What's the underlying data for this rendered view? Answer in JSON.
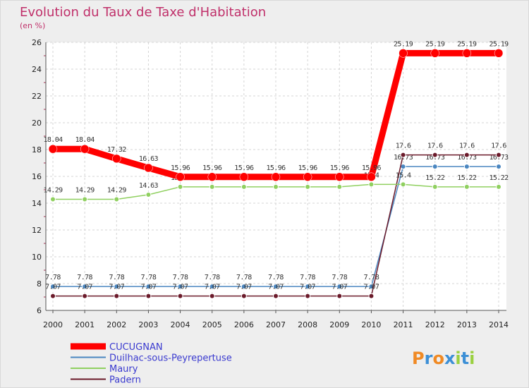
{
  "header": {
    "title": "Evolution du Taux de Taxe d'Habitation",
    "unit": "(en %)"
  },
  "logo": {
    "text": "Proxiti"
  },
  "chart_data": {
    "type": "line",
    "title": "Evolution du Taux de Taxe d'Habitation",
    "subtitle": "(en %)",
    "xlabel": "",
    "ylabel": "",
    "x": [
      2000,
      2001,
      2002,
      2003,
      2004,
      2005,
      2006,
      2007,
      2008,
      2009,
      2010,
      2011,
      2012,
      2013,
      2014
    ],
    "ylim": [
      6,
      26
    ],
    "yticks": [
      6,
      8,
      10,
      12,
      14,
      16,
      18,
      20,
      22,
      24,
      26
    ],
    "grid": true,
    "legend_position": "bottom-left",
    "series": [
      {
        "name": "CUCUGNAN",
        "color": "#ff0000",
        "values": [
          18.04,
          18.04,
          17.32,
          16.63,
          15.96,
          15.96,
          15.96,
          15.96,
          15.96,
          15.96,
          15.96,
          25.19,
          25.19,
          25.19,
          25.19
        ],
        "labels": [
          "18.04",
          "18.04",
          "17.32",
          "16.63",
          "15.96",
          "15.96",
          "15.96",
          "15.96",
          "15.96",
          "15.96",
          "15.96",
          "25.19",
          "25.19",
          "25.19",
          "25.19"
        ]
      },
      {
        "name": "Duilhac-sous-Peyrepertuse",
        "color": "#4a86c0",
        "values": [
          7.78,
          7.78,
          7.78,
          7.78,
          7.78,
          7.78,
          7.78,
          7.78,
          7.78,
          7.78,
          7.78,
          16.73,
          16.73,
          16.73,
          16.73
        ],
        "labels": [
          "7.78",
          "7.78",
          "7.78",
          "7.78",
          "7.78",
          "7.78",
          "7.78",
          "7.78",
          "7.78",
          "7.78",
          "7.78",
          "16.73",
          "16.73",
          "16.73",
          "16.73"
        ]
      },
      {
        "name": "Maury",
        "color": "#90d060",
        "values": [
          14.29,
          14.29,
          14.29,
          14.63,
          15.22,
          15.22,
          15.22,
          15.22,
          15.22,
          15.22,
          15.4,
          15.4,
          15.22,
          15.22,
          15.22
        ],
        "labels": [
          "14.29",
          "14.29",
          "14.29",
          "14.63",
          "15.22",
          "15.22",
          "15.22",
          "15.22",
          "15.22",
          "15.22",
          "15.4",
          "15.4",
          "15.22",
          "15.22",
          "15.22"
        ]
      },
      {
        "name": "Padern",
        "color": "#6b1a2a",
        "values": [
          7.07,
          7.07,
          7.07,
          7.07,
          7.07,
          7.07,
          7.07,
          7.07,
          7.07,
          7.07,
          7.07,
          17.6,
          17.6,
          17.6,
          17.6
        ],
        "labels": [
          "7.07",
          "7.07",
          "7.07",
          "7.07",
          "7.07",
          "7.07",
          "7.07",
          "7.07",
          "7.07",
          "7.07",
          "7.07",
          "17.6",
          "17.6",
          "17.6",
          "17.6"
        ]
      }
    ]
  }
}
